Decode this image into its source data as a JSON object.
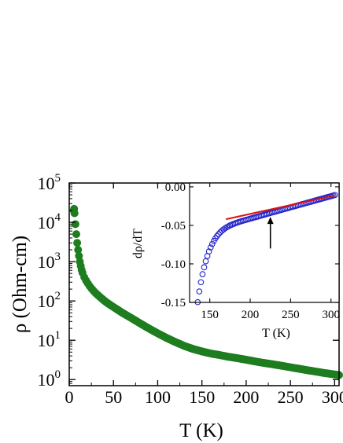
{
  "chart_data": [
    {
      "type": "scatter",
      "xlabel": "T (K)",
      "ylabel": "ρ (Ohm-cm)",
      "xlim": [
        0,
        305
      ],
      "ylim": [
        0.7,
        100000
      ],
      "yscale": "log",
      "x_ticks": [
        {
          "value": 0,
          "label": "0"
        },
        {
          "value": 50,
          "label": "50"
        },
        {
          "value": 100,
          "label": "100"
        },
        {
          "value": 150,
          "label": "150"
        },
        {
          "value": 200,
          "label": "200"
        },
        {
          "value": 250,
          "label": "250"
        },
        {
          "value": 300,
          "label": "300"
        }
      ],
      "y_ticks": [
        {
          "value": 1,
          "base": "10",
          "exp": "0"
        },
        {
          "value": 10,
          "base": "10",
          "exp": "1"
        },
        {
          "value": 100,
          "base": "10",
          "exp": "2"
        },
        {
          "value": 1000,
          "base": "10",
          "exp": "3"
        },
        {
          "value": 10000,
          "base": "10",
          "exp": "4"
        },
        {
          "value": 100000,
          "base": "10",
          "exp": "5"
        }
      ],
      "grid": false,
      "series": [
        {
          "color": "#1e7d1e",
          "marker": "filled-circle",
          "x": [
            5,
            5.5,
            6,
            7,
            8,
            9,
            10,
            11,
            12,
            13,
            14,
            15,
            17,
            19,
            21,
            23,
            25,
            28,
            31,
            35,
            40,
            45,
            50,
            60,
            70,
            80,
            90,
            100,
            110,
            120,
            130,
            140,
            150,
            160,
            170,
            180,
            190,
            200,
            210,
            220,
            230,
            240,
            250,
            260,
            270,
            280,
            290,
            300,
            305
          ],
          "y": [
            20000,
            22000,
            17000,
            9000,
            5000,
            3000,
            2000,
            1400,
            1000,
            780,
            620,
            520,
            400,
            330,
            280,
            240,
            210,
            175,
            150,
            125,
            100,
            83,
            70,
            50,
            37,
            27,
            20,
            15,
            11.5,
            9,
            7.2,
            6,
            5.2,
            4.6,
            4.2,
            3.8,
            3.5,
            3.2,
            2.9,
            2.65,
            2.45,
            2.25,
            2.05,
            1.88,
            1.72,
            1.58,
            1.45,
            1.35,
            1.3
          ]
        }
      ]
    },
    {
      "type": "scatter",
      "xlabel": "T (K)",
      "ylabel": "dρ/dT",
      "xlim": [
        125,
        310
      ],
      "ylim": [
        -0.15,
        0.005
      ],
      "x_ticks": [
        {
          "value": 150,
          "label": "150"
        },
        {
          "value": 200,
          "label": "200"
        },
        {
          "value": 250,
          "label": "250"
        },
        {
          "value": 300,
          "label": "300"
        }
      ],
      "y_ticks": [
        {
          "value": 0,
          "label": "0.00"
        },
        {
          "value": -0.05,
          "label": "-0.05"
        },
        {
          "value": -0.1,
          "label": "-0.10"
        },
        {
          "value": -0.15,
          "label": "-0.15"
        }
      ],
      "grid": false,
      "series": [
        {
          "color": "#2222cc",
          "marker": "open-circle",
          "x": [
            135,
            137,
            139,
            141,
            143,
            145,
            147,
            149,
            151,
            153,
            155,
            157,
            159,
            161,
            163,
            165,
            167,
            169,
            171,
            173,
            175,
            177,
            179,
            181,
            183,
            185,
            187,
            189,
            191,
            193,
            195,
            197,
            199,
            201,
            203,
            205,
            207,
            209,
            211,
            213,
            215,
            217,
            219,
            221,
            223,
            225,
            227,
            229,
            231,
            233,
            235,
            237,
            239,
            241,
            243,
            245,
            247,
            249,
            251,
            253,
            255,
            257,
            259,
            261,
            263,
            265,
            267,
            269,
            271,
            273,
            275,
            277,
            279,
            281,
            283,
            285,
            287,
            289,
            291,
            293,
            295,
            297,
            299,
            301,
            303,
            305
          ],
          "y": [
            -0.1497,
            -0.1358,
            -0.1238,
            -0.1134,
            -0.1044,
            -0.0966,
            -0.0898,
            -0.0838,
            -0.0787,
            -0.0742,
            -0.0702,
            -0.0668,
            -0.0638,
            -0.0612,
            -0.059,
            -0.057,
            -0.0553,
            -0.0538,
            -0.0524,
            -0.0512,
            -0.0501,
            -0.0492,
            -0.0483,
            -0.0475,
            -0.0467,
            -0.046,
            -0.0453,
            -0.0446,
            -0.044,
            -0.0434,
            -0.0428,
            -0.0422,
            -0.0416,
            -0.041,
            -0.0404,
            -0.0398,
            -0.0392,
            -0.0387,
            -0.0381,
            -0.0375,
            -0.0369,
            -0.0363,
            -0.0357,
            -0.0351,
            -0.0345,
            -0.0339,
            -0.0333,
            -0.0328,
            -0.0322,
            -0.0316,
            -0.031,
            -0.0304,
            -0.0298,
            -0.0292,
            -0.0287,
            -0.0281,
            -0.0275,
            -0.0269,
            -0.0263,
            -0.0257,
            -0.0252,
            -0.0246,
            -0.024,
            -0.0234,
            -0.0228,
            -0.0223,
            -0.0217,
            -0.0211,
            -0.0205,
            -0.0199,
            -0.0194,
            -0.0188,
            -0.0182,
            -0.0176,
            -0.017,
            -0.0164,
            -0.0159,
            -0.0153,
            -0.0147,
            -0.0141,
            -0.0135,
            -0.013,
            -0.0124,
            -0.0118,
            -0.0112,
            -0.0106
          ]
        }
      ],
      "fit_line": {
        "color": "#dd1111",
        "x": [
          170,
          305
        ],
        "y": [
          -0.042,
          -0.011
        ]
      },
      "annotation": {
        "type": "arrow",
        "direction": "up",
        "x": 225,
        "y_from": -0.08,
        "y_to": -0.039
      }
    }
  ]
}
